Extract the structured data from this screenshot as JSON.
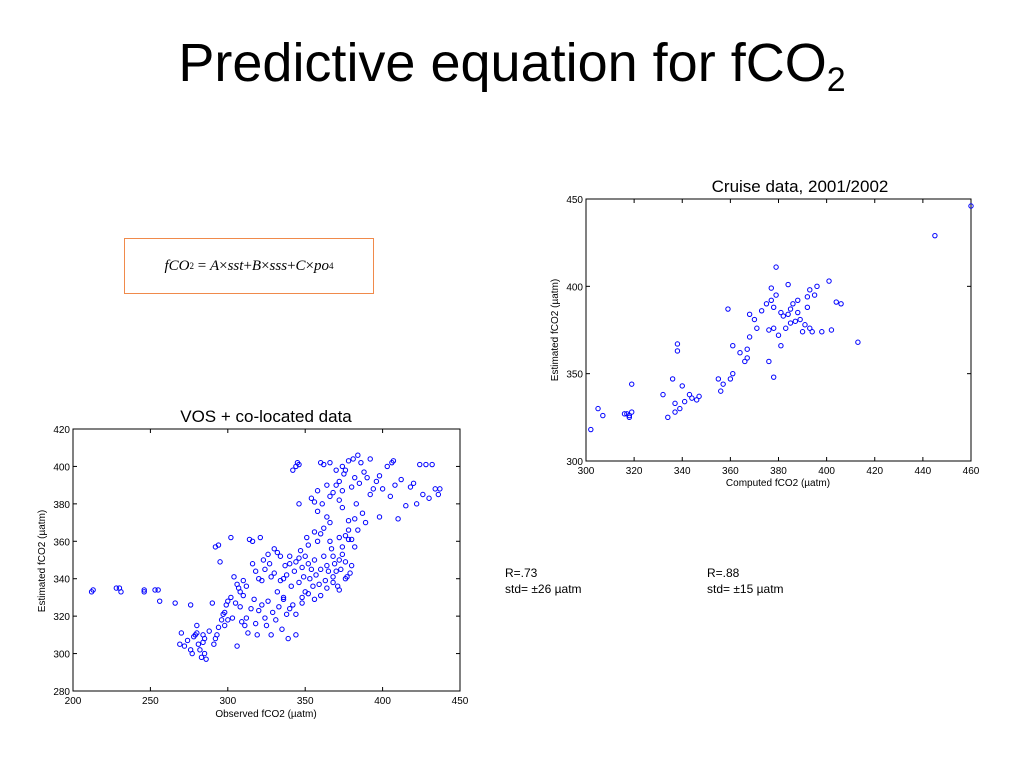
{
  "slide": {
    "title_main": "Predictive equation for fCO",
    "title_sub": "2"
  },
  "equation": {
    "lhs": "fCO",
    "lhs_sub": "2",
    "eq": "=",
    "A": "A",
    "times1": "×",
    "sst": "sst",
    "plus1": "+",
    "B": "B",
    "times2": "×",
    "sss": "sss",
    "plus2": "+",
    "C": "C",
    "times3": "×",
    "po": "po",
    "po_sub": "4"
  },
  "stats": {
    "vos_r": "R=.73",
    "vos_std": "std= ±26 µatm",
    "cruise_r": "R=.88",
    "cruise_std": "std= ±15 µatm"
  },
  "colors": {
    "marker": "#0000ff",
    "equation_border": "#f08a4b"
  },
  "chart_data": [
    {
      "type": "scatter",
      "title": "VOS + co-located data",
      "xlabel": "Observed fCO2 (µatm)",
      "ylabel": "Estimated fCO2 (µatm)",
      "xlim": [
        200,
        450
      ],
      "ylim": [
        280,
        420
      ],
      "xticks": [
        200,
        250,
        300,
        350,
        400,
        450
      ],
      "yticks": [
        280,
        300,
        320,
        340,
        360,
        380,
        400,
        420
      ],
      "marker": "open-circle",
      "color": "#0000ff",
      "grid": false,
      "points": [
        [
          212,
          333
        ],
        [
          213,
          334
        ],
        [
          228,
          335
        ],
        [
          230,
          335
        ],
        [
          231,
          333
        ],
        [
          246,
          333
        ],
        [
          246,
          334
        ],
        [
          253,
          334
        ],
        [
          255,
          334
        ],
        [
          256,
          328
        ],
        [
          266,
          327
        ],
        [
          269,
          305
        ],
        [
          270,
          311
        ],
        [
          272,
          304
        ],
        [
          274,
          307
        ],
        [
          276,
          302
        ],
        [
          277,
          300
        ],
        [
          278,
          309
        ],
        [
          279,
          310
        ],
        [
          280,
          311
        ],
        [
          281,
          305
        ],
        [
          282,
          302
        ],
        [
          283,
          298
        ],
        [
          284,
          306
        ],
        [
          285,
          300
        ],
        [
          286,
          297
        ],
        [
          285,
          308
        ],
        [
          290,
          327
        ],
        [
          291,
          305
        ],
        [
          293,
          310
        ],
        [
          292,
          357
        ],
        [
          294,
          358
        ],
        [
          295,
          349
        ],
        [
          297,
          321
        ],
        [
          298,
          322
        ],
        [
          299,
          326
        ],
        [
          300,
          328
        ],
        [
          302,
          362
        ],
        [
          303,
          319
        ],
        [
          305,
          327
        ],
        [
          306,
          304
        ],
        [
          307,
          335
        ],
        [
          308,
          325
        ],
        [
          309,
          317
        ],
        [
          310,
          331
        ],
        [
          311,
          315
        ],
        [
          312,
          319
        ],
        [
          313,
          311
        ],
        [
          314,
          361
        ],
        [
          315,
          324
        ],
        [
          316,
          360
        ],
        [
          317,
          329
        ],
        [
          318,
          316
        ],
        [
          319,
          310
        ],
        [
          320,
          323
        ],
        [
          321,
          362
        ],
        [
          322,
          326
        ],
        [
          323,
          350
        ],
        [
          324,
          319
        ],
        [
          325,
          315
        ],
        [
          326,
          328
        ],
        [
          327,
          348
        ],
        [
          328,
          310
        ],
        [
          329,
          322
        ],
        [
          330,
          343
        ],
        [
          331,
          318
        ],
        [
          332,
          354
        ],
        [
          333,
          325
        ],
        [
          334,
          339
        ],
        [
          335,
          313
        ],
        [
          336,
          329
        ],
        [
          337,
          347
        ],
        [
          338,
          321
        ],
        [
          339,
          308
        ],
        [
          340,
          352
        ],
        [
          341,
          336
        ],
        [
          342,
          326
        ],
        [
          343,
          344
        ],
        [
          344,
          310
        ],
        [
          345,
          402
        ],
        [
          346,
          338
        ],
        [
          347,
          355
        ],
        [
          348,
          330
        ],
        [
          349,
          341
        ],
        [
          350,
          333
        ],
        [
          351,
          362
        ],
        [
          352,
          348
        ],
        [
          353,
          340
        ],
        [
          354,
          345
        ],
        [
          355,
          336
        ],
        [
          356,
          350
        ],
        [
          357,
          342
        ],
        [
          358,
          360
        ],
        [
          359,
          337
        ],
        [
          360,
          345
        ],
        [
          361,
          380
        ],
        [
          362,
          352
        ],
        [
          363,
          339
        ],
        [
          364,
          347
        ],
        [
          365,
          344
        ],
        [
          366,
          370
        ],
        [
          367,
          356
        ],
        [
          368,
          341
        ],
        [
          369,
          348
        ],
        [
          370,
          390
        ],
        [
          371,
          336
        ],
        [
          372,
          362
        ],
        [
          373,
          345
        ],
        [
          374,
          353
        ],
        [
          375,
          396
        ],
        [
          376,
          349
        ],
        [
          377,
          341
        ],
        [
          378,
          361
        ],
        [
          379,
          343
        ],
        [
          380,
          389
        ],
        [
          381,
          404
        ],
        [
          382,
          394
        ],
        [
          383,
          380
        ],
        [
          385,
          391
        ],
        [
          387,
          375
        ],
        [
          389,
          370
        ],
        [
          390,
          394
        ],
        [
          392,
          385
        ],
        [
          394,
          388
        ],
        [
          396,
          392
        ],
        [
          398,
          373
        ],
        [
          400,
          388
        ],
        [
          403,
          400
        ],
        [
          405,
          384
        ],
        [
          407,
          403
        ],
        [
          408,
          390
        ],
        [
          410,
          372
        ],
        [
          412,
          393
        ],
        [
          415,
          379
        ],
        [
          418,
          389
        ],
        [
          420,
          391
        ],
        [
          422,
          380
        ],
        [
          424,
          401
        ],
        [
          426,
          385
        ],
        [
          428,
          401
        ],
        [
          430,
          383
        ],
        [
          432,
          401
        ],
        [
          434,
          388
        ],
        [
          436,
          385
        ],
        [
          437,
          388
        ],
        [
          342,
          398
        ],
        [
          344,
          400
        ],
        [
          346,
          401
        ],
        [
          360,
          402
        ],
        [
          362,
          401
        ],
        [
          366,
          402
        ],
        [
          374,
          400
        ],
        [
          376,
          398
        ],
        [
          378,
          403
        ],
        [
          384,
          406
        ],
        [
          386,
          402
        ],
        [
          388,
          397
        ],
        [
          392,
          404
        ],
        [
          398,
          395
        ],
        [
          406,
          402
        ],
        [
          356,
          381
        ],
        [
          358,
          376
        ],
        [
          364,
          373
        ],
        [
          368,
          386
        ],
        [
          372,
          382
        ],
        [
          374,
          378
        ],
        [
          378,
          371
        ],
        [
          382,
          372
        ],
        [
          384,
          366
        ],
        [
          360,
          364
        ],
        [
          362,
          367
        ],
        [
          356,
          365
        ],
        [
          352,
          358
        ],
        [
          350,
          352
        ],
        [
          348,
          346
        ],
        [
          346,
          351
        ],
        [
          344,
          349
        ],
        [
          340,
          348
        ],
        [
          338,
          342
        ],
        [
          336,
          340
        ],
        [
          334,
          352
        ],
        [
          330,
          356
        ],
        [
          326,
          353
        ],
        [
          322,
          339
        ],
        [
          318,
          344
        ],
        [
          316,
          348
        ],
        [
          312,
          336
        ],
        [
          310,
          339
        ],
        [
          308,
          333
        ],
        [
          306,
          337
        ],
        [
          304,
          341
        ],
        [
          302,
          330
        ],
        [
          300,
          318
        ],
        [
          298,
          315
        ],
        [
          296,
          318
        ],
        [
          294,
          314
        ],
        [
          292,
          308
        ],
        [
          288,
          312
        ],
        [
          284,
          310
        ],
        [
          280,
          315
        ],
        [
          276,
          326
        ],
        [
          320,
          340
        ],
        [
          324,
          345
        ],
        [
          328,
          341
        ],
        [
          332,
          333
        ],
        [
          336,
          330
        ],
        [
          340,
          324
        ],
        [
          344,
          321
        ],
        [
          348,
          327
        ],
        [
          352,
          332
        ],
        [
          356,
          329
        ],
        [
          360,
          331
        ],
        [
          364,
          335
        ],
        [
          368,
          338
        ],
        [
          372,
          334
        ],
        [
          376,
          340
        ],
        [
          380,
          347
        ],
        [
          366,
          360
        ],
        [
          368,
          352
        ],
        [
          370,
          344
        ],
        [
          372,
          350
        ],
        [
          374,
          357
        ],
        [
          376,
          363
        ],
        [
          378,
          366
        ],
        [
          380,
          361
        ],
        [
          382,
          357
        ],
        [
          370,
          398
        ],
        [
          372,
          392
        ],
        [
          374,
          387
        ],
        [
          364,
          390
        ],
        [
          366,
          384
        ],
        [
          358,
          387
        ],
        [
          354,
          383
        ],
        [
          346,
          380
        ]
      ]
    },
    {
      "type": "scatter",
      "title": "Cruise data, 2001/2002",
      "xlabel": "Computed fCO2 (µatm)",
      "ylabel": "Estimated fCO2 (µatm)",
      "xlim": [
        300,
        460
      ],
      "ylim": [
        300,
        450
      ],
      "xticks": [
        300,
        320,
        340,
        360,
        380,
        400,
        420,
        440,
        460
      ],
      "yticks": [
        300,
        350,
        400,
        450
      ],
      "marker": "open-circle",
      "color": "#0000ff",
      "grid": false,
      "points": [
        [
          302,
          318
        ],
        [
          305,
          330
        ],
        [
          307,
          326
        ],
        [
          316,
          327
        ],
        [
          317,
          327
        ],
        [
          318,
          326
        ],
        [
          318,
          325
        ],
        [
          319,
          328
        ],
        [
          319,
          344
        ],
        [
          332,
          338
        ],
        [
          334,
          325
        ],
        [
          336,
          347
        ],
        [
          337,
          333
        ],
        [
          337,
          328
        ],
        [
          338,
          367
        ],
        [
          338,
          363
        ],
        [
          339,
          330
        ],
        [
          340,
          343
        ],
        [
          341,
          334
        ],
        [
          343,
          338
        ],
        [
          344,
          336
        ],
        [
          346,
          335
        ],
        [
          347,
          337
        ],
        [
          355,
          347
        ],
        [
          356,
          340
        ],
        [
          357,
          344
        ],
        [
          359,
          387
        ],
        [
          360,
          347
        ],
        [
          361,
          350
        ],
        [
          361,
          366
        ],
        [
          364,
          362
        ],
        [
          366,
          357
        ],
        [
          367,
          359
        ],
        [
          367,
          364
        ],
        [
          368,
          371
        ],
        [
          368,
          384
        ],
        [
          370,
          381
        ],
        [
          371,
          376
        ],
        [
          373,
          386
        ],
        [
          375,
          390
        ],
        [
          376,
          375
        ],
        [
          376,
          357
        ],
        [
          377,
          392
        ],
        [
          377,
          399
        ],
        [
          378,
          388
        ],
        [
          378,
          376
        ],
        [
          378,
          348
        ],
        [
          379,
          411
        ],
        [
          379,
          395
        ],
        [
          380,
          372
        ],
        [
          381,
          366
        ],
        [
          381,
          385
        ],
        [
          382,
          383
        ],
        [
          383,
          376
        ],
        [
          384,
          384
        ],
        [
          384,
          401
        ],
        [
          385,
          379
        ],
        [
          385,
          387
        ],
        [
          386,
          390
        ],
        [
          387,
          380
        ],
        [
          388,
          385
        ],
        [
          388,
          392
        ],
        [
          389,
          381
        ],
        [
          390,
          374
        ],
        [
          391,
          378
        ],
        [
          392,
          394
        ],
        [
          392,
          388
        ],
        [
          393,
          376
        ],
        [
          393,
          398
        ],
        [
          394,
          374
        ],
        [
          395,
          395
        ],
        [
          396,
          400
        ],
        [
          398,
          374
        ],
        [
          401,
          403
        ],
        [
          402,
          375
        ],
        [
          404,
          391
        ],
        [
          406,
          390
        ],
        [
          413,
          368
        ],
        [
          445,
          429
        ],
        [
          460,
          446
        ]
      ]
    }
  ]
}
